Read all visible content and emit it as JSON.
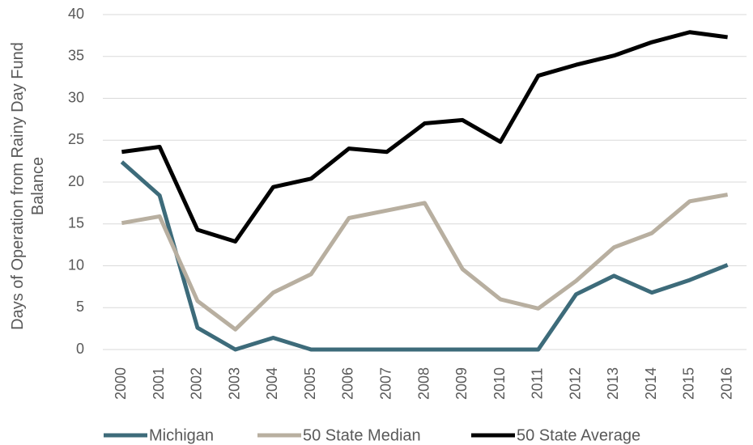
{
  "chart_data": {
    "type": "line",
    "y_label": "Days of Operation from Rainy Day Fund Balance",
    "categories": [
      "2000",
      "2001",
      "2002",
      "2003",
      "2004",
      "2005",
      "2006",
      "2007",
      "2008",
      "2009",
      "2010",
      "2011",
      "2012",
      "2013",
      "2014",
      "2015",
      "2016"
    ],
    "series": [
      {
        "name": "Michigan",
        "color": "#3d6b7a",
        "values": [
          22.4,
          18.4,
          2.6,
          0,
          1.4,
          0,
          0,
          0,
          0,
          0,
          0,
          0,
          6.6,
          8.8,
          6.8,
          8.3,
          10.1
        ]
      },
      {
        "name": "50 State Median",
        "color": "#b8afa0",
        "values": [
          15.1,
          15.9,
          5.8,
          2.4,
          6.8,
          9.0,
          15.7,
          16.6,
          17.5,
          9.6,
          6.0,
          4.9,
          8.2,
          12.2,
          13.9,
          17.7,
          18.5
        ]
      },
      {
        "name": "50 State Average",
        "color": "#000000",
        "values": [
          23.6,
          24.2,
          14.3,
          12.9,
          19.4,
          20.4,
          24.0,
          23.6,
          27.0,
          27.4,
          24.8,
          32.7,
          34.0,
          35.1,
          36.7,
          37.9,
          37.3
        ]
      }
    ],
    "ylim": [
      0,
      40
    ],
    "yticks": [
      0,
      5,
      10,
      15,
      20,
      25,
      30,
      35,
      40
    ],
    "grid": true,
    "legend": "bottom"
  }
}
